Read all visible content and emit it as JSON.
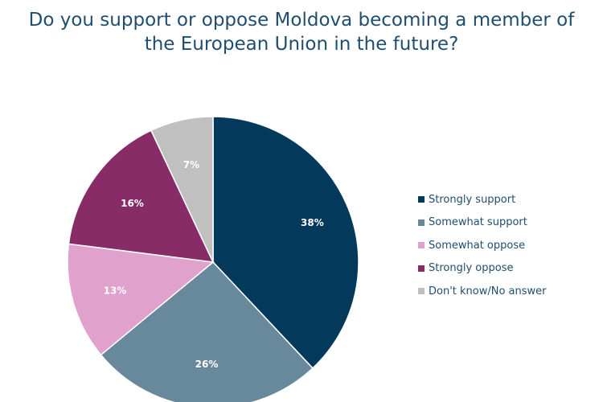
{
  "chart_data": {
    "type": "pie",
    "title_lines": [
      "Do you support or oppose Moldova becoming a member of",
      "the European Union in the future?"
    ],
    "slices": [
      {
        "label": "Strongly support",
        "value": 38,
        "value_label": "38%",
        "color": "#03395a",
        "label_color": "#ffffff"
      },
      {
        "label": "Somewhat support",
        "value": 26,
        "value_label": "26%",
        "color": "#68889b",
        "label_color": "#ffffff"
      },
      {
        "label": "Somewhat oppose",
        "value": 13,
        "value_label": "13%",
        "color": "#e0a1cc",
        "label_color": "#ffffff"
      },
      {
        "label": "Strongly oppose",
        "value": 16,
        "value_label": "16%",
        "color": "#882c68",
        "label_color": "#ffffff"
      },
      {
        "label": "Don't know/No answer",
        "value": 7,
        "value_label": "7%",
        "color": "#c0c0c0",
        "label_color": "#ffffff"
      }
    ],
    "start_angle": "12 o'clock",
    "direction": "clockwise",
    "legend_position": "right"
  }
}
